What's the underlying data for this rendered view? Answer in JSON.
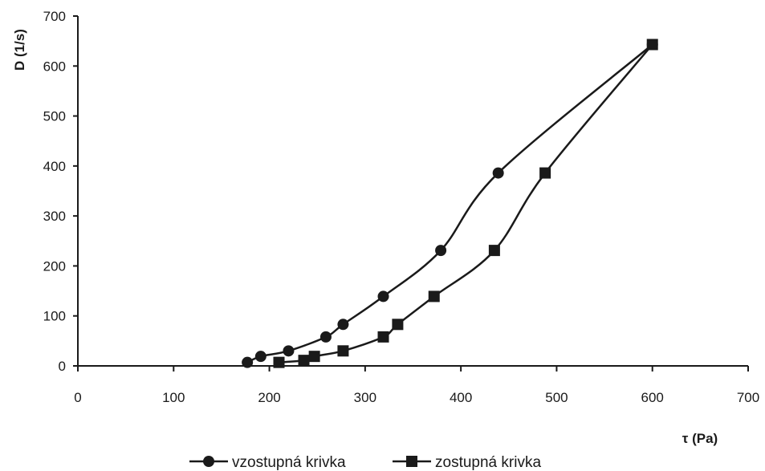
{
  "chart_data": {
    "type": "line",
    "title": "",
    "xlabel": "τ (Pa)",
    "ylabel": "D (1/s)",
    "xlim": [
      0,
      700
    ],
    "ylim": [
      0,
      700
    ],
    "xticks": [
      0,
      100,
      200,
      300,
      400,
      500,
      600,
      700
    ],
    "yticks": [
      0,
      100,
      200,
      300,
      400,
      500,
      600,
      700
    ],
    "grid": false,
    "legend_position": "bottom",
    "series": [
      {
        "name": "vzostupná krivka",
        "marker": "circle",
        "color": "#1a1a1a",
        "points": [
          [
            177,
            7
          ],
          [
            191,
            19
          ],
          [
            220,
            30
          ],
          [
            259,
            58
          ],
          [
            277,
            83
          ],
          [
            319,
            139
          ],
          [
            379,
            231
          ],
          [
            439,
            386
          ],
          [
            600,
            643
          ]
        ]
      },
      {
        "name": "zostupná krivka",
        "marker": "square",
        "color": "#1a1a1a",
        "points": [
          [
            210,
            7
          ],
          [
            236,
            11
          ],
          [
            247,
            19
          ],
          [
            277,
            30
          ],
          [
            319,
            58
          ],
          [
            334,
            83
          ],
          [
            372,
            139
          ],
          [
            435,
            231
          ],
          [
            488,
            386
          ],
          [
            600,
            643
          ]
        ]
      }
    ]
  }
}
